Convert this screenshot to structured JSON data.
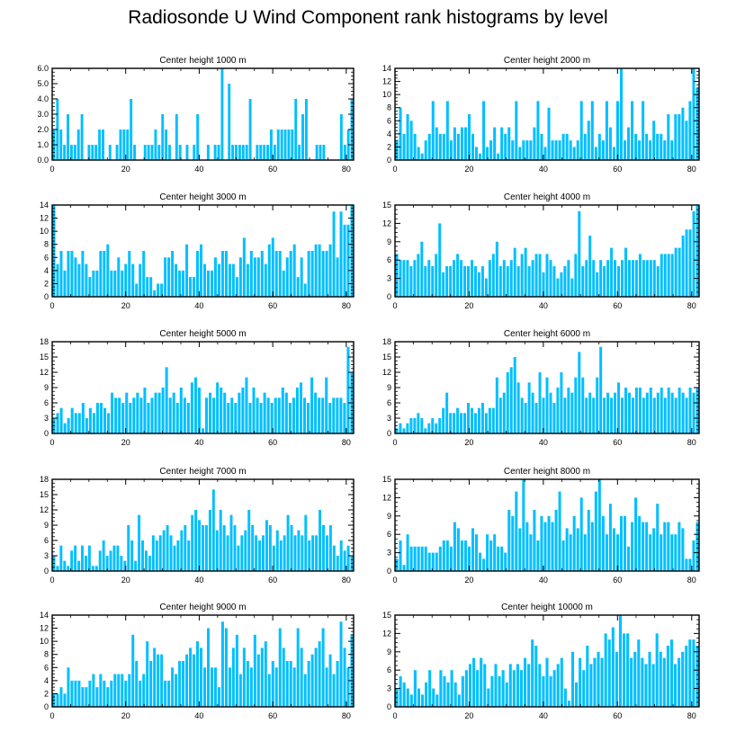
{
  "title": "Radiosonde U Wind Component rank histograms by level",
  "bar_color": "#00bfff",
  "chart_data": [
    {
      "type": "bar",
      "title": "Center height 1000 m",
      "ylim": [
        0,
        6
      ],
      "yticks": [
        0,
        1,
        2,
        3,
        4,
        5,
        6
      ],
      "ytick_labels": [
        "0.0",
        "1.0",
        "2.0",
        "3.0",
        "4.0",
        "5.0",
        "6.0"
      ],
      "xlim": [
        0,
        82
      ],
      "xticks": [
        0,
        20,
        40,
        60,
        80
      ],
      "values": [
        2,
        4,
        2,
        1,
        3,
        1,
        1,
        2,
        3,
        0,
        1,
        1,
        1,
        2,
        2,
        0,
        1,
        0,
        1,
        2,
        2,
        2,
        4,
        1,
        0,
        0,
        1,
        1,
        1,
        2,
        1,
        3,
        2,
        1,
        0,
        3,
        1,
        0,
        1,
        0,
        1,
        3,
        0,
        0,
        1,
        0,
        1,
        1,
        6,
        0,
        5,
        1,
        1,
        1,
        1,
        1,
        4,
        0,
        1,
        1,
        1,
        1,
        2,
        1,
        2,
        2,
        2,
        2,
        2,
        4,
        1,
        3,
        4,
        0,
        0,
        1,
        1,
        1,
        0,
        0,
        0,
        0,
        3,
        1,
        2,
        4
      ]
    },
    {
      "type": "bar",
      "title": "Center height 2000 m",
      "ylim": [
        0,
        14
      ],
      "yticks": [
        0,
        2,
        4,
        6,
        8,
        10,
        12,
        14
      ],
      "ytick_labels": [
        "0",
        "2",
        "4",
        "6",
        "8",
        "10",
        "12",
        "14"
      ],
      "xlim": [
        0,
        82
      ],
      "xticks": [
        0,
        20,
        40,
        60,
        80
      ],
      "values": [
        3,
        8,
        4,
        7,
        6,
        4,
        2,
        1,
        3,
        4,
        9,
        5,
        4,
        4,
        9,
        3,
        5,
        4,
        5,
        5,
        7,
        4,
        2,
        1,
        9,
        2,
        3,
        5,
        1,
        5,
        4,
        5,
        3,
        9,
        2,
        3,
        3,
        3,
        5,
        9,
        4,
        2,
        8,
        3,
        3,
        3,
        4,
        4,
        3,
        2,
        3,
        9,
        4,
        6,
        9,
        2,
        4,
        3,
        9,
        5,
        2,
        9,
        14,
        3,
        5,
        9,
        4,
        3,
        9,
        4,
        3,
        6,
        4,
        4,
        3,
        7,
        3,
        7,
        7,
        8,
        6,
        9,
        14,
        11
      ]
    },
    {
      "type": "bar",
      "title": "Center height 3000 m",
      "ylim": [
        0,
        14
      ],
      "yticks": [
        0,
        2,
        4,
        6,
        8,
        10,
        12,
        14
      ],
      "ytick_labels": [
        "0",
        "2",
        "4",
        "6",
        "8",
        "10",
        "12",
        "14"
      ],
      "xlim": [
        0,
        82
      ],
      "xticks": [
        0,
        20,
        40,
        60,
        80
      ],
      "values": [
        14,
        5,
        7,
        4,
        7,
        7,
        6,
        5,
        7,
        5,
        3,
        4,
        4,
        7,
        7,
        8,
        4,
        4,
        6,
        4,
        5,
        7,
        5,
        2,
        5,
        7,
        3,
        3,
        1,
        2,
        2,
        6,
        6,
        7,
        5,
        4,
        4,
        8,
        3,
        3,
        7,
        8,
        5,
        4,
        4,
        6,
        5,
        7,
        7,
        5,
        5,
        3,
        6,
        9,
        5,
        7,
        6,
        6,
        7,
        5,
        8,
        9,
        7,
        7,
        4,
        6,
        7,
        8,
        3,
        6,
        2,
        7,
        7,
        8,
        8,
        7,
        7,
        8,
        13,
        6,
        13,
        11,
        11,
        14
      ]
    },
    {
      "type": "bar",
      "title": "Center height 4000 m",
      "ylim": [
        0,
        15
      ],
      "yticks": [
        0,
        3,
        6,
        9,
        12,
        15
      ],
      "ytick_labels": [
        "0",
        "3",
        "6",
        "9",
        "12",
        "15"
      ],
      "xlim": [
        0,
        82
      ],
      "xticks": [
        0,
        20,
        40,
        60,
        80
      ],
      "values": [
        7,
        6,
        6,
        6,
        5,
        6,
        7,
        9,
        5,
        6,
        5,
        7,
        12,
        4,
        5,
        5,
        6,
        7,
        6,
        5,
        5,
        6,
        5,
        4,
        5,
        3,
        6,
        7,
        9,
        5,
        6,
        5,
        6,
        8,
        5,
        7,
        8,
        5,
        6,
        7,
        7,
        4,
        7,
        6,
        5,
        3,
        4,
        5,
        6,
        3,
        7,
        14,
        5,
        6,
        10,
        6,
        4,
        6,
        5,
        6,
        8,
        6,
        5,
        6,
        8,
        6,
        6,
        6,
        7,
        6,
        6,
        6,
        6,
        5,
        7,
        7,
        7,
        7,
        8,
        8,
        10,
        11,
        11,
        14,
        15
      ]
    },
    {
      "type": "bar",
      "title": "Center height 5000 m",
      "ylim": [
        0,
        18
      ],
      "yticks": [
        0,
        3,
        6,
        9,
        12,
        15,
        18
      ],
      "ytick_labels": [
        "0",
        "3",
        "6",
        "9",
        "12",
        "15",
        "18"
      ],
      "xlim": [
        0,
        82
      ],
      "xticks": [
        0,
        20,
        40,
        60,
        80
      ],
      "values": [
        3,
        4,
        5,
        2,
        3,
        5,
        4,
        4,
        6,
        3,
        5,
        4,
        6,
        6,
        5,
        4,
        8,
        7,
        7,
        6,
        8,
        6,
        7,
        8,
        7,
        9,
        6,
        7,
        8,
        8,
        9,
        13,
        7,
        8,
        6,
        9,
        7,
        6,
        10,
        11,
        9,
        1,
        7,
        8,
        7,
        10,
        9,
        8,
        6,
        7,
        6,
        8,
        9,
        11,
        6,
        9,
        7,
        6,
        8,
        7,
        6,
        7,
        7,
        9,
        8,
        6,
        7,
        9,
        10,
        7,
        6,
        11,
        8,
        7,
        7,
        11,
        6,
        7,
        7,
        7,
        6,
        17,
        12
      ]
    },
    {
      "type": "bar",
      "title": "Center height 6000 m",
      "ylim": [
        0,
        18
      ],
      "yticks": [
        0,
        3,
        6,
        9,
        12,
        15,
        18
      ],
      "ytick_labels": [
        "0",
        "3",
        "6",
        "9",
        "12",
        "15",
        "18"
      ],
      "xlim": [
        0,
        82
      ],
      "xticks": [
        0,
        20,
        40,
        60,
        80
      ],
      "values": [
        1,
        2,
        1,
        2,
        3,
        3,
        4,
        3,
        1,
        2,
        3,
        2,
        3,
        5,
        8,
        4,
        4,
        5,
        4,
        4,
        6,
        5,
        4,
        5,
        6,
        4,
        5,
        5,
        11,
        7,
        8,
        12,
        13,
        15,
        10,
        7,
        6,
        10,
        8,
        6,
        12,
        7,
        11,
        8,
        6,
        9,
        12,
        7,
        9,
        8,
        11,
        16,
        11,
        7,
        8,
        7,
        11,
        17,
        7,
        8,
        7,
        8,
        10,
        7,
        9,
        8,
        7,
        9,
        9,
        7,
        8,
        9,
        7,
        8,
        9,
        7,
        9,
        8,
        7,
        9,
        8,
        7,
        9,
        8,
        9
      ]
    },
    {
      "type": "bar",
      "title": "Center height 7000 m",
      "ylim": [
        0,
        18
      ],
      "yticks": [
        0,
        3,
        6,
        9,
        12,
        15,
        18
      ],
      "ytick_labels": [
        "0",
        "3",
        "6",
        "9",
        "12",
        "15",
        "18"
      ],
      "xlim": [
        0,
        82
      ],
      "xticks": [
        0,
        20,
        40,
        60,
        80
      ],
      "values": [
        3,
        1,
        5,
        2,
        1,
        4,
        5,
        2,
        5,
        3,
        5,
        1,
        1,
        4,
        6,
        3,
        4,
        5,
        5,
        3,
        2,
        9,
        6,
        2,
        11,
        6,
        4,
        3,
        7,
        6,
        7,
        8,
        9,
        7,
        5,
        6,
        8,
        9,
        6,
        11,
        12,
        10,
        9,
        9,
        12,
        16,
        8,
        12,
        9,
        7,
        11,
        9,
        5,
        7,
        8,
        12,
        9,
        7,
        6,
        7,
        10,
        9,
        5,
        8,
        6,
        7,
        11,
        9,
        7,
        8,
        7,
        11,
        6,
        7,
        7,
        12,
        9,
        7,
        9,
        5,
        3,
        6,
        4,
        5,
        3
      ]
    },
    {
      "type": "bar",
      "title": "Center height 8000 m",
      "ylim": [
        0,
        15
      ],
      "yticks": [
        0,
        3,
        6,
        9,
        12,
        15
      ],
      "ytick_labels": [
        "0",
        "3",
        "6",
        "9",
        "12",
        "15"
      ],
      "xlim": [
        0,
        82
      ],
      "xticks": [
        0,
        20,
        40,
        60,
        80
      ],
      "values": [
        2,
        5,
        1,
        6,
        4,
        4,
        4,
        4,
        4,
        3,
        3,
        3,
        4,
        5,
        5,
        4,
        8,
        7,
        5,
        5,
        4,
        7,
        6,
        3,
        2,
        6,
        5,
        6,
        4,
        4,
        3,
        10,
        9,
        13,
        7,
        15,
        8,
        6,
        10,
        5,
        9,
        8,
        9,
        8,
        10,
        13,
        5,
        7,
        6,
        9,
        7,
        12,
        6,
        10,
        8,
        13,
        15,
        9,
        6,
        11,
        7,
        6,
        9,
        9,
        4,
        8,
        12,
        9,
        8,
        8,
        6,
        7,
        11,
        6,
        8,
        8,
        6,
        6,
        8,
        7,
        2,
        2,
        5,
        8
      ]
    },
    {
      "type": "bar",
      "title": "Center height 9000 m",
      "ylim": [
        0,
        14
      ],
      "yticks": [
        0,
        2,
        4,
        6,
        8,
        10,
        12,
        14
      ],
      "ytick_labels": [
        "0",
        "2",
        "4",
        "6",
        "8",
        "10",
        "12",
        "14"
      ],
      "xlim": [
        0,
        82
      ],
      "xticks": [
        0,
        20,
        40,
        60,
        80
      ],
      "values": [
        2,
        2,
        3,
        2,
        6,
        4,
        4,
        4,
        3,
        3,
        4,
        5,
        3,
        5,
        4,
        3,
        4,
        5,
        5,
        5,
        4,
        5,
        11,
        7,
        4,
        5,
        10,
        7,
        9,
        8,
        8,
        4,
        4,
        6,
        5,
        7,
        7,
        8,
        9,
        8,
        10,
        9,
        6,
        12,
        6,
        6,
        3,
        13,
        12,
        6,
        9,
        11,
        5,
        9,
        7,
        6,
        11,
        8,
        9,
        10,
        5,
        7,
        6,
        12,
        9,
        7,
        7,
        6,
        12,
        9,
        5,
        7,
        8,
        9,
        10,
        12,
        6,
        8,
        5,
        7,
        13,
        9,
        6,
        11
      ]
    },
    {
      "type": "bar",
      "title": "Center height 10000 m",
      "ylim": [
        0,
        15
      ],
      "yticks": [
        0,
        3,
        6,
        9,
        12,
        15
      ],
      "ytick_labels": [
        "0",
        "3",
        "6",
        "9",
        "12",
        "15"
      ],
      "xlim": [
        0,
        82
      ],
      "xticks": [
        0,
        20,
        40,
        60,
        80
      ],
      "values": [
        3,
        5,
        4,
        3,
        2,
        6,
        3,
        2,
        4,
        6,
        3,
        2,
        6,
        5,
        4,
        6,
        4,
        2,
        5,
        6,
        7,
        8,
        6,
        8,
        7,
        3,
        5,
        7,
        5,
        6,
        4,
        7,
        6,
        7,
        6,
        8,
        7,
        11,
        10,
        7,
        5,
        8,
        5,
        6,
        7,
        8,
        3,
        1,
        9,
        4,
        8,
        6,
        10,
        7,
        8,
        9,
        8,
        12,
        11,
        13,
        9,
        15,
        12,
        12,
        8,
        9,
        11,
        8,
        7,
        9,
        7,
        12,
        9,
        8,
        10,
        11,
        7,
        8,
        9,
        10,
        11,
        11,
        10
      ]
    }
  ]
}
